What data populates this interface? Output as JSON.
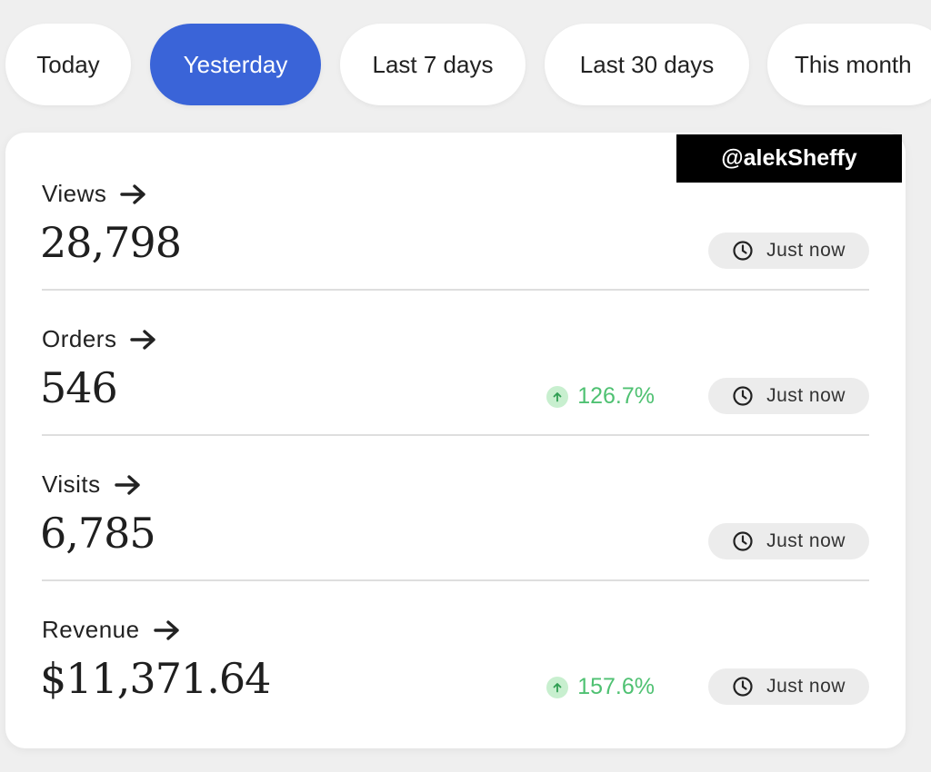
{
  "tabs": [
    {
      "label": "Today",
      "active": false
    },
    {
      "label": "Yesterday",
      "active": true
    },
    {
      "label": "Last 7 days",
      "active": false
    },
    {
      "label": "Last 30 days",
      "active": false
    },
    {
      "label": "This month",
      "active": false
    }
  ],
  "watermark": "@alekSheffy",
  "metrics": [
    {
      "label": "Views",
      "value": "28,798",
      "change": null,
      "updated": "Just now"
    },
    {
      "label": "Orders",
      "value": "546",
      "change": "126.7%",
      "updated": "Just now"
    },
    {
      "label": "Visits",
      "value": "6,785",
      "change": null,
      "updated": "Just now"
    },
    {
      "label": "Revenue",
      "value": "$11,371.64",
      "change": "157.6%",
      "updated": "Just now"
    }
  ],
  "icons": {
    "label_arrow": "arrow-right-icon",
    "change_up": "arrow-up-circle-icon",
    "updated": "clock-icon"
  },
  "colors": {
    "accent": "#3a64d8",
    "positive": "#4fc172",
    "positive_bg": "#c8efcf"
  }
}
